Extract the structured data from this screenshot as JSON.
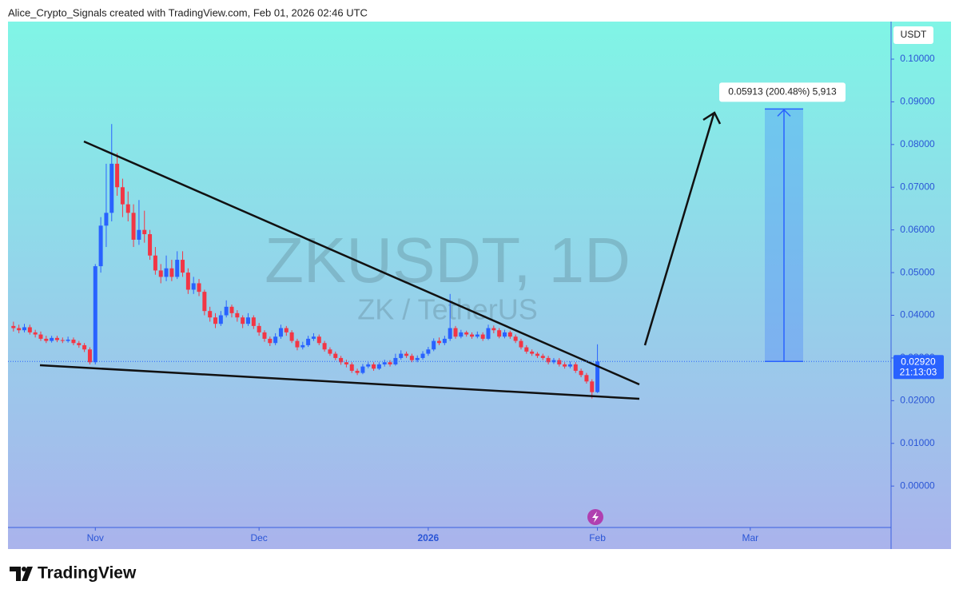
{
  "header": {
    "text": "Alice_Crypto_Signals created with TradingView.com, Feb 01, 2026 02:46 UTC"
  },
  "footer": {
    "brand": "TradingView"
  },
  "chart_data": {
    "type": "candlestick",
    "title": "ZKUSDT, 1D",
    "subtitle": "ZK / TetherUS",
    "y_axis_label": "USDT",
    "up_color": "#2962ff",
    "down_color": "#f23645",
    "x": [
      -15,
      -14,
      -13,
      -12,
      -11,
      -10,
      -9,
      -8,
      -7,
      -6,
      -5,
      -4,
      -3,
      -2,
      -1,
      0,
      1,
      2,
      3,
      4,
      5,
      6,
      7,
      8,
      9,
      10,
      11,
      12,
      13,
      14,
      15,
      16,
      17,
      18,
      19,
      20,
      21,
      22,
      23,
      24,
      25,
      26,
      27,
      28,
      29,
      30,
      31,
      32,
      33,
      34,
      35,
      36,
      37,
      38,
      39,
      40,
      41,
      42,
      43,
      44,
      45,
      46,
      47,
      48,
      49,
      50,
      51,
      52,
      53,
      54,
      55,
      56,
      57,
      58,
      59,
      60,
      61,
      62,
      63,
      64,
      65,
      66,
      67,
      68,
      69,
      70,
      71,
      72,
      73,
      74,
      75,
      76,
      77,
      78,
      79,
      80,
      81,
      82,
      83,
      84,
      85,
      86,
      87,
      88,
      89,
      90,
      91,
      92
    ],
    "open": [
      0.0375,
      0.037,
      0.0365,
      0.0372,
      0.036,
      0.0355,
      0.0345,
      0.034,
      0.0347,
      0.0342,
      0.034,
      0.0343,
      0.0335,
      0.033,
      0.032,
      0.029,
      0.0515,
      0.061,
      0.064,
      0.0755,
      0.07,
      0.066,
      0.064,
      0.0577,
      0.06,
      0.059,
      0.054,
      0.0505,
      0.049,
      0.051,
      0.049,
      0.053,
      0.05,
      0.046,
      0.0475,
      0.0455,
      0.041,
      0.0395,
      0.038,
      0.04,
      0.042,
      0.0405,
      0.0395,
      0.038,
      0.0395,
      0.0375,
      0.036,
      0.0345,
      0.0335,
      0.035,
      0.037,
      0.036,
      0.034,
      0.0325,
      0.033,
      0.0345,
      0.035,
      0.0335,
      0.032,
      0.031,
      0.03,
      0.029,
      0.0285,
      0.027,
      0.0265,
      0.028,
      0.0285,
      0.0275,
      0.0285,
      0.029,
      0.0285,
      0.03,
      0.031,
      0.0305,
      0.0295,
      0.03,
      0.031,
      0.032,
      0.034,
      0.0335,
      0.0345,
      0.037,
      0.035,
      0.036,
      0.0355,
      0.035,
      0.0355,
      0.0345,
      0.037,
      0.0365,
      0.035,
      0.036,
      0.035,
      0.034,
      0.0325,
      0.0315,
      0.031,
      0.0305,
      0.03,
      0.029,
      0.0295,
      0.0285,
      0.028,
      0.0285,
      0.027,
      0.026,
      0.0245,
      0.022
    ],
    "high": [
      0.0385,
      0.0378,
      0.038,
      0.0378,
      0.0366,
      0.0362,
      0.0352,
      0.0352,
      0.0352,
      0.0348,
      0.035,
      0.0348,
      0.034,
      0.0335,
      0.0325,
      0.052,
      0.063,
      0.0755,
      0.0848,
      0.078,
      0.072,
      0.069,
      0.066,
      0.067,
      0.0645,
      0.06,
      0.056,
      0.052,
      0.054,
      0.053,
      0.055,
      0.055,
      0.051,
      0.049,
      0.0485,
      0.046,
      0.042,
      0.0405,
      0.041,
      0.0435,
      0.0425,
      0.0412,
      0.04,
      0.0405,
      0.04,
      0.0382,
      0.0365,
      0.035,
      0.0358,
      0.0378,
      0.0375,
      0.0365,
      0.0345,
      0.0338,
      0.0352,
      0.0358,
      0.0355,
      0.034,
      0.0325,
      0.0315,
      0.0305,
      0.0296,
      0.029,
      0.0275,
      0.0286,
      0.029,
      0.029,
      0.029,
      0.0296,
      0.0295,
      0.031,
      0.0318,
      0.0315,
      0.031,
      0.0306,
      0.0316,
      0.0326,
      0.0346,
      0.0348,
      0.0352,
      0.045,
      0.0375,
      0.0366,
      0.0364,
      0.036,
      0.0362,
      0.036,
      0.0378,
      0.0376,
      0.037,
      0.0366,
      0.0364,
      0.0355,
      0.0345,
      0.033,
      0.032,
      0.0314,
      0.031,
      0.0305,
      0.03,
      0.03,
      0.029,
      0.0292,
      0.029,
      0.0275,
      0.0265,
      0.025,
      0.0332
    ],
    "low": [
      0.0362,
      0.0358,
      0.036,
      0.0355,
      0.0348,
      0.034,
      0.0335,
      0.0336,
      0.0337,
      0.0335,
      0.0336,
      0.033,
      0.0324,
      0.0314,
      0.0285,
      0.0285,
      0.05,
      0.056,
      0.062,
      0.068,
      0.063,
      0.062,
      0.056,
      0.0565,
      0.057,
      0.053,
      0.0495,
      0.0475,
      0.048,
      0.048,
      0.0485,
      0.049,
      0.045,
      0.045,
      0.0445,
      0.04,
      0.0385,
      0.037,
      0.0375,
      0.0395,
      0.0395,
      0.0385,
      0.037,
      0.0375,
      0.0368,
      0.0352,
      0.0338,
      0.0328,
      0.033,
      0.0345,
      0.0352,
      0.0335,
      0.0318,
      0.032,
      0.0326,
      0.034,
      0.033,
      0.0315,
      0.0305,
      0.0295,
      0.0284,
      0.0278,
      0.0265,
      0.026,
      0.0262,
      0.0276,
      0.027,
      0.0272,
      0.028,
      0.028,
      0.0282,
      0.0296,
      0.03,
      0.029,
      0.029,
      0.0296,
      0.0305,
      0.0316,
      0.033,
      0.033,
      0.034,
      0.0345,
      0.0346,
      0.035,
      0.0345,
      0.0346,
      0.034,
      0.0342,
      0.0358,
      0.0346,
      0.0346,
      0.0345,
      0.0335,
      0.032,
      0.031,
      0.0305,
      0.03,
      0.0295,
      0.0285,
      0.0286,
      0.028,
      0.0275,
      0.0276,
      0.0265,
      0.0255,
      0.024,
      0.0205,
      0.0218
    ],
    "close": [
      0.037,
      0.0365,
      0.0372,
      0.036,
      0.0355,
      0.0345,
      0.034,
      0.0347,
      0.0342,
      0.034,
      0.0343,
      0.0335,
      0.033,
      0.032,
      0.029,
      0.0515,
      0.061,
      0.064,
      0.0755,
      0.07,
      0.066,
      0.064,
      0.0577,
      0.06,
      0.059,
      0.054,
      0.0505,
      0.049,
      0.051,
      0.049,
      0.053,
      0.05,
      0.046,
      0.0475,
      0.0455,
      0.041,
      0.0395,
      0.038,
      0.04,
      0.042,
      0.0405,
      0.0395,
      0.038,
      0.0395,
      0.0375,
      0.036,
      0.0345,
      0.0335,
      0.035,
      0.037,
      0.036,
      0.034,
      0.0325,
      0.033,
      0.0345,
      0.035,
      0.0335,
      0.032,
      0.031,
      0.03,
      0.029,
      0.0285,
      0.027,
      0.0265,
      0.028,
      0.0285,
      0.0275,
      0.0285,
      0.029,
      0.0285,
      0.03,
      0.031,
      0.0305,
      0.0295,
      0.03,
      0.031,
      0.032,
      0.034,
      0.0335,
      0.0345,
      0.037,
      0.035,
      0.036,
      0.0355,
      0.035,
      0.0355,
      0.0345,
      0.037,
      0.0365,
      0.035,
      0.036,
      0.035,
      0.034,
      0.0325,
      0.0315,
      0.031,
      0.0305,
      0.03,
      0.029,
      0.0295,
      0.0285,
      0.028,
      0.0285,
      0.027,
      0.026,
      0.0245,
      0.022,
      0.0292
    ],
    "xlim": [
      -16,
      145.8
    ],
    "ylim": [
      -0.0097,
      0.1088
    ],
    "xticks": [
      {
        "value": 0,
        "label": "Nov"
      },
      {
        "value": 30,
        "label": "Dec"
      },
      {
        "value": 61,
        "label": "2026"
      },
      {
        "value": 92,
        "label": "Feb"
      },
      {
        "value": 120,
        "label": "Mar"
      }
    ],
    "yticks": [
      {
        "value": 0,
        "label": "0.00000"
      },
      {
        "value": 0.01,
        "label": "0.01000"
      },
      {
        "value": 0.02,
        "label": "0.02000"
      },
      {
        "value": 0.03,
        "label": "0.03000"
      },
      {
        "value": 0.04,
        "label": "0.04000"
      },
      {
        "value": 0.05,
        "label": "0.05000"
      },
      {
        "value": 0.06,
        "label": "0.06000"
      },
      {
        "value": 0.07,
        "label": "0.07000"
      },
      {
        "value": 0.08,
        "label": "0.08000"
      },
      {
        "value": 0.09,
        "label": "0.09000"
      },
      {
        "value": 0.1,
        "label": "0.10000"
      }
    ],
    "last_price": {
      "value": 0.0292,
      "label": "0.02920"
    },
    "countdown": "21:13:03",
    "measure": {
      "value": 0.05913,
      "label": "0.05913 (200.48%) 5,913"
    }
  }
}
